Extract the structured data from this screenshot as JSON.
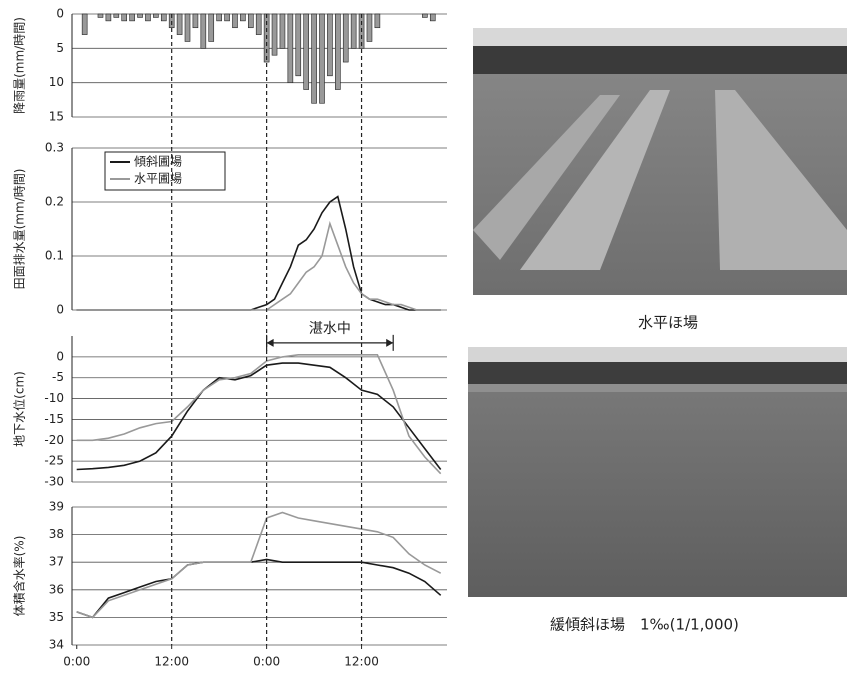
{
  "chart_data": [
    {
      "type": "bar",
      "ylabel": "降雨量(mm/時間)",
      "ylim": [
        0,
        15
      ],
      "yticks": [
        0,
        5,
        10,
        15
      ],
      "y_inverted": true,
      "color": "#999999",
      "x": [
        0,
        1,
        2,
        3,
        4,
        5,
        6,
        7,
        8,
        9,
        10,
        11,
        12,
        13,
        14,
        15,
        16,
        17,
        18,
        19,
        20,
        21,
        22,
        23,
        24,
        25,
        26,
        27,
        28,
        29,
        30,
        31,
        32,
        33,
        34,
        35,
        36,
        37,
        38,
        39,
        40,
        41,
        42,
        43,
        44,
        45,
        46
      ],
      "values": [
        0,
        3,
        0,
        0.5,
        1,
        0.5,
        1,
        1,
        0.5,
        1,
        0.5,
        1,
        2,
        3,
        4,
        2,
        5,
        4,
        1,
        1,
        2,
        1,
        2,
        3,
        7,
        6,
        5,
        10,
        9,
        11,
        13,
        13,
        9,
        11,
        7,
        5,
        5,
        4,
        2,
        0,
        0,
        0,
        0,
        0,
        0.5,
        1,
        0
      ]
    },
    {
      "type": "line",
      "ylabel": "田面排水量(mm/時間)",
      "ylim": [
        0,
        0.3
      ],
      "yticks": [
        0,
        0.1,
        0.2,
        0.3
      ],
      "legend": "upper left",
      "x": [
        0,
        1,
        2,
        3,
        4,
        5,
        6,
        7,
        8,
        9,
        10,
        11,
        12,
        13,
        14,
        15,
        16,
        17,
        18,
        19,
        20,
        21,
        22,
        23,
        24,
        25,
        26,
        27,
        28,
        29,
        30,
        31,
        32,
        33,
        34,
        35,
        36,
        37,
        38,
        39,
        40,
        41,
        42,
        43,
        44,
        45,
        46
      ],
      "series": [
        {
          "name": "傾斜圃場",
          "color": "#1a1a1a",
          "values": [
            0,
            0,
            0,
            0,
            0,
            0,
            0,
            0,
            0,
            0,
            0,
            0,
            0,
            0,
            0,
            0,
            0,
            0,
            0,
            0,
            0,
            0,
            0,
            0.005,
            0.01,
            0.02,
            0.05,
            0.08,
            0.12,
            0.13,
            0.15,
            0.18,
            0.2,
            0.21,
            0.15,
            0.08,
            0.03,
            0.02,
            0.015,
            0.01,
            0.01,
            0.005,
            0,
            0,
            0,
            0,
            0
          ]
        },
        {
          "name": "水平圃場",
          "color": "#999999",
          "values": [
            0,
            0,
            0,
            0,
            0,
            0,
            0,
            0,
            0,
            0,
            0,
            0,
            0,
            0,
            0,
            0,
            0,
            0,
            0,
            0,
            0,
            0,
            0,
            0,
            0,
            0.01,
            0.02,
            0.03,
            0.05,
            0.07,
            0.08,
            0.1,
            0.16,
            0.12,
            0.08,
            0.05,
            0.03,
            0.02,
            0.02,
            0.015,
            0.01,
            0.01,
            0.005,
            0,
            0,
            0,
            0
          ]
        }
      ]
    },
    {
      "type": "line",
      "ylabel": "地下水位(cm)",
      "ylim": [
        -30,
        5
      ],
      "yticks": [
        0,
        -5,
        -10,
        -15,
        -20,
        -25,
        -30
      ],
      "annotation": {
        "text": "湛水中",
        "x": [
          24,
          40
        ]
      },
      "x": [
        0,
        2,
        4,
        6,
        8,
        10,
        12,
        14,
        16,
        18,
        20,
        22,
        24,
        26,
        28,
        30,
        32,
        34,
        36,
        38,
        40,
        42,
        44,
        46
      ],
      "series": [
        {
          "color": "#1a1a1a",
          "values": [
            -27,
            -26.8,
            -26.5,
            -26,
            -25,
            -23,
            -19,
            -13,
            -8,
            -5,
            -5.5,
            -4.5,
            -2,
            -1.5,
            -1.5,
            -2,
            -2.5,
            -5,
            -8,
            -9,
            -12,
            -17,
            -22,
            -27
          ]
        },
        {
          "color": "#999999",
          "values": [
            -20,
            -20,
            -19.5,
            -18.5,
            -17,
            -16,
            -15.5,
            -12,
            -8,
            -5.5,
            -5,
            -4,
            -1,
            0,
            0.5,
            0.5,
            0.5,
            0.5,
            0.5,
            0.5,
            -8,
            -19,
            -24,
            -28
          ]
        }
      ]
    },
    {
      "type": "line",
      "ylabel": "体積含水率(%)",
      "ylim": [
        34,
        39
      ],
      "yticks": [
        34,
        35,
        36,
        37,
        38,
        39
      ],
      "xlim": [
        -0.6,
        46.8
      ],
      "xticks": [
        {
          "value": 0,
          "label": "0:00"
        },
        {
          "value": 12,
          "label": "12:00"
        },
        {
          "value": 24,
          "label": "0:00"
        },
        {
          "value": 36,
          "label": "12:00"
        }
      ],
      "x": [
        0,
        2,
        4,
        6,
        8,
        10,
        12,
        14,
        16,
        18,
        20,
        22,
        24,
        26,
        28,
        30,
        32,
        34,
        36,
        38,
        40,
        42,
        44,
        46
      ],
      "series": [
        {
          "color": "#1a1a1a",
          "values": [
            35.2,
            35,
            35.7,
            35.9,
            36.1,
            36.3,
            36.4,
            36.9,
            37,
            37,
            37,
            37,
            37.1,
            37,
            37,
            37,
            37,
            37,
            37,
            36.9,
            36.8,
            36.6,
            36.3,
            35.8
          ]
        },
        {
          "color": "#999999",
          "values": [
            35.2,
            35,
            35.6,
            35.8,
            36,
            36.2,
            36.4,
            36.9,
            37,
            37,
            37,
            37,
            38.6,
            38.8,
            38.6,
            38.5,
            38.4,
            38.3,
            38.2,
            38.1,
            37.9,
            37.3,
            36.9,
            36.6
          ]
        }
      ]
    }
  ],
  "photos": [
    {
      "caption": "水平ほ場"
    },
    {
      "caption": "緩傾斜ほ場　1‰(1/1,000)"
    }
  ]
}
